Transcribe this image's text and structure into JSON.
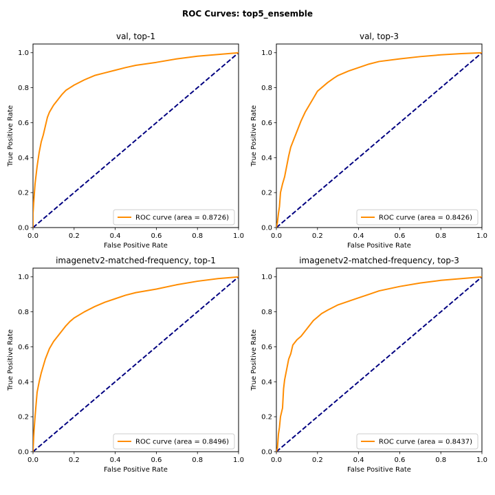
{
  "figure": {
    "suptitle": "ROC Curves: top5_ensemble",
    "colors": {
      "roc": "#ff8c00",
      "chance": "#000080",
      "frame": "#000000",
      "legend_border": "#cccccc"
    }
  },
  "chart_data": [
    {
      "type": "line",
      "title": "val, top-1",
      "xlabel": "False Positive Rate",
      "ylabel": "True Positive Rate",
      "xlim": [
        0,
        1
      ],
      "ylim": [
        0,
        1.05
      ],
      "xticks": [
        "0.0",
        "0.2",
        "0.4",
        "0.6",
        "0.8",
        "1.0"
      ],
      "yticks": [
        "0.0",
        "0.2",
        "0.4",
        "0.6",
        "0.8",
        "1.0"
      ],
      "grid": false,
      "legend_position": "lower-right",
      "series": [
        {
          "name": "ROC curve (area = 0.8726)",
          "color": "#ff8c00",
          "style": "solid",
          "x": [
            0,
            0,
            0.005,
            0.01,
            0.02,
            0.03,
            0.04,
            0.05,
            0.06,
            0.07,
            0.08,
            0.1,
            0.12,
            0.14,
            0.16,
            0.18,
            0.2,
            0.25,
            0.3,
            0.35,
            0.4,
            0.45,
            0.5,
            0.6,
            0.7,
            0.8,
            0.9,
            1.0
          ],
          "y": [
            0,
            0.08,
            0.17,
            0.25,
            0.35,
            0.43,
            0.49,
            0.53,
            0.58,
            0.63,
            0.66,
            0.7,
            0.73,
            0.76,
            0.785,
            0.8,
            0.815,
            0.845,
            0.87,
            0.885,
            0.9,
            0.915,
            0.928,
            0.945,
            0.965,
            0.98,
            0.99,
            1.0
          ]
        },
        {
          "name": "",
          "color": "#000080",
          "style": "dashed",
          "x": [
            0,
            1
          ],
          "y": [
            0,
            1
          ]
        }
      ]
    },
    {
      "type": "line",
      "title": "val, top-3",
      "xlabel": "False Positive Rate",
      "ylabel": "True Positive Rate",
      "xlim": [
        0,
        1
      ],
      "ylim": [
        0,
        1.05
      ],
      "xticks": [
        "0.0",
        "0.2",
        "0.4",
        "0.6",
        "0.8",
        "1.0"
      ],
      "yticks": [
        "0.0",
        "0.2",
        "0.4",
        "0.6",
        "0.8",
        "1.0"
      ],
      "grid": false,
      "legend_position": "lower-right",
      "series": [
        {
          "name": "ROC curve (area = 0.8426)",
          "color": "#ff8c00",
          "style": "solid",
          "x": [
            0,
            0.005,
            0.01,
            0.015,
            0.02,
            0.03,
            0.04,
            0.05,
            0.06,
            0.07,
            0.08,
            0.1,
            0.12,
            0.14,
            0.16,
            0.18,
            0.2,
            0.22,
            0.25,
            0.28,
            0.3,
            0.35,
            0.4,
            0.45,
            0.5,
            0.6,
            0.7,
            0.8,
            0.9,
            1.0
          ],
          "y": [
            0,
            0.03,
            0.08,
            0.12,
            0.2,
            0.25,
            0.29,
            0.35,
            0.41,
            0.46,
            0.49,
            0.55,
            0.61,
            0.66,
            0.7,
            0.74,
            0.78,
            0.8,
            0.83,
            0.855,
            0.87,
            0.895,
            0.915,
            0.935,
            0.95,
            0.965,
            0.978,
            0.988,
            0.995,
            1.0
          ]
        },
        {
          "name": "",
          "color": "#000080",
          "style": "dashed",
          "x": [
            0,
            1
          ],
          "y": [
            0,
            1
          ]
        }
      ]
    },
    {
      "type": "line",
      "title": "imagenetv2-matched-frequency, top-1",
      "xlabel": "False Positive Rate",
      "ylabel": "True Positive Rate",
      "xlim": [
        0,
        1
      ],
      "ylim": [
        0,
        1.05
      ],
      "xticks": [
        "0.0",
        "0.2",
        "0.4",
        "0.6",
        "0.8",
        "1.0"
      ],
      "yticks": [
        "0.0",
        "0.2",
        "0.4",
        "0.6",
        "0.8",
        "1.0"
      ],
      "grid": false,
      "legend_position": "lower-right",
      "series": [
        {
          "name": "ROC curve (area = 0.8496)",
          "color": "#ff8c00",
          "style": "solid",
          "x": [
            0,
            0.002,
            0.005,
            0.01,
            0.015,
            0.02,
            0.03,
            0.04,
            0.05,
            0.06,
            0.08,
            0.1,
            0.12,
            0.14,
            0.16,
            0.18,
            0.2,
            0.25,
            0.3,
            0.35,
            0.4,
            0.45,
            0.5,
            0.6,
            0.7,
            0.8,
            0.9,
            1.0
          ],
          "y": [
            0,
            0.05,
            0.12,
            0.2,
            0.27,
            0.34,
            0.4,
            0.45,
            0.49,
            0.53,
            0.59,
            0.63,
            0.66,
            0.69,
            0.72,
            0.745,
            0.765,
            0.8,
            0.83,
            0.855,
            0.875,
            0.895,
            0.91,
            0.93,
            0.955,
            0.975,
            0.99,
            1.0
          ]
        },
        {
          "name": "",
          "color": "#000080",
          "style": "dashed",
          "x": [
            0,
            1
          ],
          "y": [
            0,
            1
          ]
        }
      ]
    },
    {
      "type": "line",
      "title": "imagenetv2-matched-frequency, top-3",
      "xlabel": "False Positive Rate",
      "ylabel": "True Positive Rate",
      "xlim": [
        0,
        1
      ],
      "ylim": [
        0,
        1.05
      ],
      "xticks": [
        "0.0",
        "0.2",
        "0.4",
        "0.6",
        "0.8",
        "1.0"
      ],
      "yticks": [
        "0.0",
        "0.2",
        "0.4",
        "0.6",
        "0.8",
        "1.0"
      ],
      "grid": false,
      "legend_position": "lower-right",
      "series": [
        {
          "name": "ROC curve (area = 0.8437)",
          "color": "#ff8c00",
          "style": "solid",
          "x": [
            0,
            0.005,
            0.01,
            0.015,
            0.02,
            0.03,
            0.035,
            0.04,
            0.045,
            0.05,
            0.06,
            0.07,
            0.08,
            0.1,
            0.12,
            0.14,
            0.16,
            0.18,
            0.2,
            0.22,
            0.25,
            0.3,
            0.35,
            0.4,
            0.45,
            0.5,
            0.6,
            0.7,
            0.8,
            0.9,
            1.0
          ],
          "y": [
            0,
            0.02,
            0.1,
            0.14,
            0.2,
            0.25,
            0.36,
            0.41,
            0.44,
            0.47,
            0.53,
            0.56,
            0.61,
            0.64,
            0.66,
            0.69,
            0.72,
            0.75,
            0.77,
            0.79,
            0.81,
            0.84,
            0.86,
            0.88,
            0.9,
            0.92,
            0.945,
            0.965,
            0.98,
            0.99,
            1.0
          ]
        },
        {
          "name": "",
          "color": "#000080",
          "style": "dashed",
          "x": [
            0,
            1
          ],
          "y": [
            0,
            1
          ]
        }
      ]
    }
  ]
}
